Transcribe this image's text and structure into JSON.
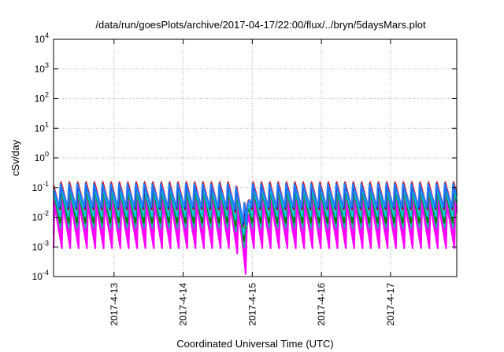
{
  "chart_data": {
    "type": "line",
    "title": "/data/run/goesPlots/archive/2017-04-17/22:00/flux/../bryn/5daysMars.plot",
    "xlabel": "Coordinated Universal Time (UTC)",
    "ylabel": "cSv/day",
    "x_range": [
      "2017-04-12 03:00",
      "2017-04-17 23:00"
    ],
    "x_ticks": [
      {
        "label": "2017-4-13",
        "value": "2017-04-13 00:00"
      },
      {
        "label": "2017-4-14",
        "value": "2017-04-14 00:00"
      },
      {
        "label": "2017-4-15",
        "value": "2017-04-15 00:00"
      },
      {
        "label": "2017-4-16",
        "value": "2017-04-16 00:00"
      },
      {
        "label": "2017-4-17",
        "value": "2017-04-17 00:00"
      }
    ],
    "y_scale": "log",
    "ylim": [
      0.0001,
      10000
    ],
    "y_ticks": [
      {
        "base": "10",
        "exp": "-4",
        "value": 0.0001
      },
      {
        "base": "10",
        "exp": "-3",
        "value": 0.001
      },
      {
        "base": "10",
        "exp": "-2",
        "value": 0.01
      },
      {
        "base": "10",
        "exp": "-1",
        "value": 0.1
      },
      {
        "base": "10",
        "exp": "0",
        "value": 1
      },
      {
        "base": "10",
        "exp": "1",
        "value": 10
      },
      {
        "base": "10",
        "exp": "2",
        "value": 100
      },
      {
        "base": "10",
        "exp": "3",
        "value": 1000
      },
      {
        "base": "10",
        "exp": "4",
        "value": 10000
      }
    ],
    "grid": true,
    "legend": "none",
    "pattern": {
      "period_hours": 2.9,
      "series": [
        {
          "color": "#ff00ff",
          "peak": 0.025,
          "trough": 0.0009
        },
        {
          "color": "#ff00ff",
          "peak": 0.03,
          "trough": 0.0012
        },
        {
          "color": "#ff00ff",
          "peak": 0.04,
          "trough": 0.0015
        },
        {
          "color": "#ff00ff",
          "peak": 0.05,
          "trough": 0.002
        },
        {
          "color": "#ff00ff",
          "peak": 0.06,
          "trough": 0.0025
        },
        {
          "color": "#20b0a0",
          "peak": 0.08,
          "trough": 0.004
        },
        {
          "color": "#008000",
          "peak": 0.09,
          "trough": 0.006
        },
        {
          "color": "#00c8e8",
          "peak": 0.1,
          "trough": 0.01
        },
        {
          "color": "#ff0000",
          "peak": 0.16,
          "trough": 0.018
        },
        {
          "color": "#0000ff",
          "peak": 0.13,
          "trough": 0.02
        },
        {
          "color": "#2080ff",
          "peak": 0.14,
          "trough": 0.022
        }
      ],
      "dip_start": "2017-04-14 17:00",
      "dip_end": "2017-04-14 23:00",
      "dip_min": "2017-04-14 22:00",
      "dip_factor": 0.08
    }
  }
}
